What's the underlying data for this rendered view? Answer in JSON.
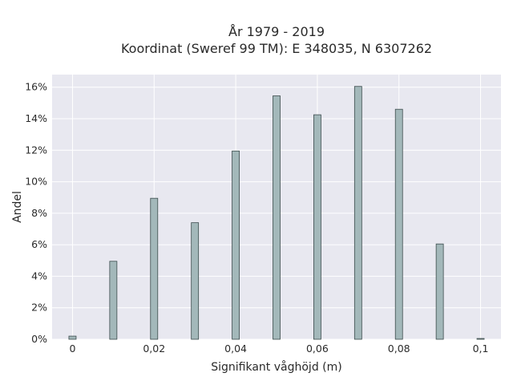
{
  "chart_data": {
    "type": "bar",
    "title_line1": "År 1979 - 2019",
    "title_line2": "Koordinat (Sweref 99 TM): E 348035, N 6307262",
    "xlabel": "Signifikant våghöjd (m)",
    "ylabel": "Andel",
    "x": [
      0,
      0.01,
      0.02,
      0.03,
      0.04,
      0.05,
      0.06,
      0.07,
      0.08,
      0.09,
      0.1
    ],
    "values": [
      0.2,
      4.95,
      8.95,
      7.4,
      11.95,
      15.45,
      14.25,
      16.05,
      14.6,
      6.05,
      0.05
    ],
    "xlim": [
      -0.005,
      0.105
    ],
    "ylim": [
      0,
      16.8
    ],
    "xticks": [
      {
        "value": 0,
        "label": "0"
      },
      {
        "value": 0.02,
        "label": "0,02"
      },
      {
        "value": 0.04,
        "label": "0,04"
      },
      {
        "value": 0.06,
        "label": "0,06"
      },
      {
        "value": 0.08,
        "label": "0,08"
      },
      {
        "value": 0.1,
        "label": "0,1"
      }
    ],
    "yticks": [
      {
        "value": 0,
        "label": "0%"
      },
      {
        "value": 2,
        "label": "2%"
      },
      {
        "value": 4,
        "label": "4%"
      },
      {
        "value": 6,
        "label": "6%"
      },
      {
        "value": 8,
        "label": "8%"
      },
      {
        "value": 10,
        "label": "10%"
      },
      {
        "value": 12,
        "label": "12%"
      },
      {
        "value": 14,
        "label": "14%"
      },
      {
        "value": 16,
        "label": "16%"
      }
    ],
    "grid": true,
    "colors": {
      "plot_background": "#e8e8f0",
      "grid": "#ffffff",
      "bar_fill": "#a3b8ba",
      "bar_stroke": "#3b4b4c"
    }
  }
}
